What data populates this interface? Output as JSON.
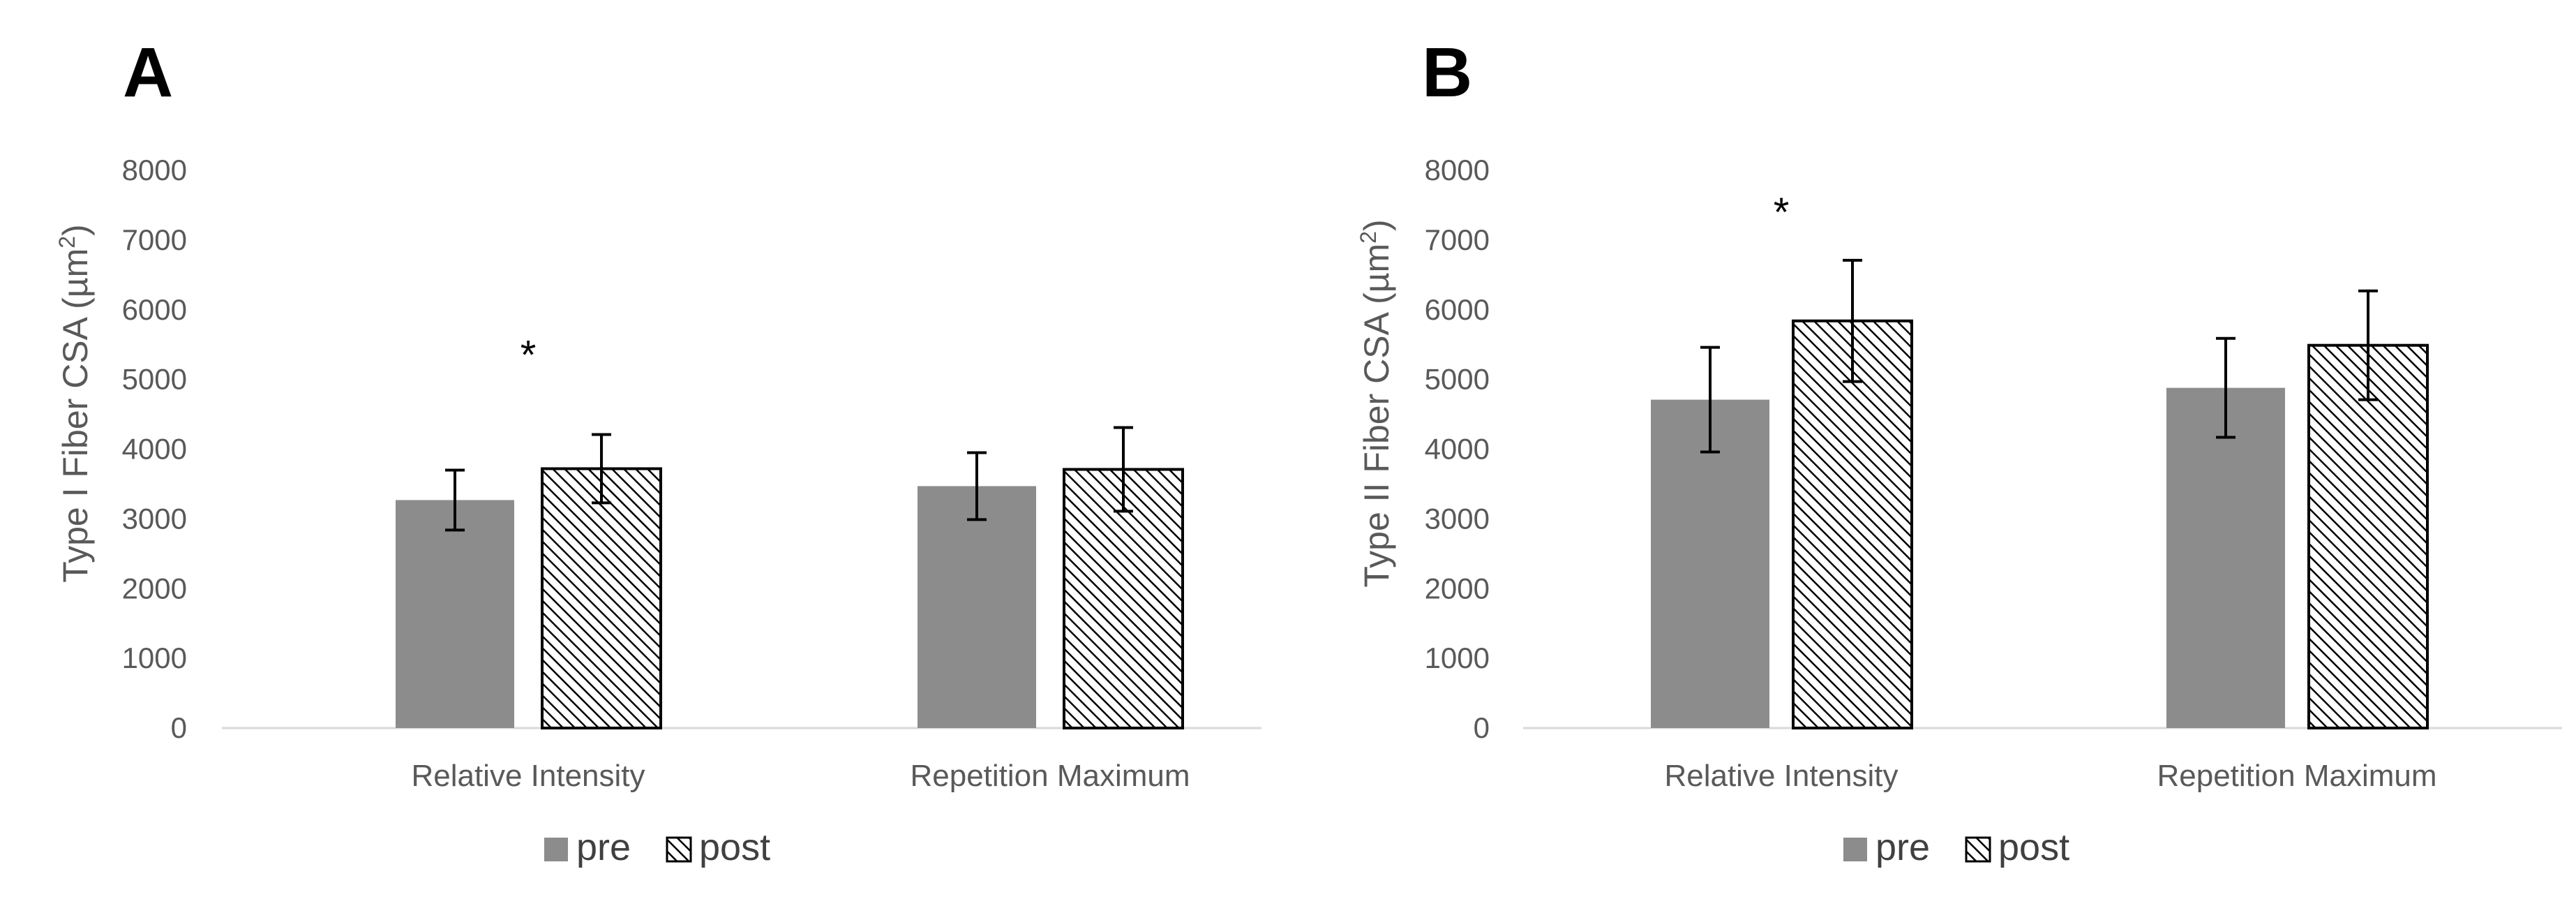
{
  "chart_data": [
    {
      "type": "bar",
      "panel_label": "A",
      "categories": [
        "Relative Intensity",
        "Repetition Maximum"
      ],
      "series": [
        {
          "name": "pre",
          "values": [
            3270,
            3470
          ],
          "errors": [
            430,
            480
          ]
        },
        {
          "name": "post",
          "values": [
            3720,
            3710
          ],
          "errors": [
            490,
            600
          ]
        }
      ],
      "ylabel_main": "Type I  Fiber CSA (µm",
      "ylabel_sup": "2",
      "ylabel_end": ")",
      "ylim": [
        0,
        8000
      ],
      "yticks": [
        "0",
        "1000",
        "2000",
        "3000",
        "4000",
        "5000",
        "6000",
        "7000",
        "8000"
      ],
      "annotations": [
        {
          "text": "*",
          "category": 0,
          "series": 0,
          "value": 5450
        }
      ],
      "legend": [
        "pre",
        "post"
      ]
    },
    {
      "type": "bar",
      "panel_label": "B",
      "categories": [
        "Relative Intensity",
        "Repetition Maximum"
      ],
      "series": [
        {
          "name": "pre",
          "values": [
            4710,
            4880
          ],
          "errors": [
            750,
            710
          ]
        },
        {
          "name": "post",
          "values": [
            5840,
            5490
          ],
          "errors": [
            870,
            780
          ]
        }
      ],
      "ylabel_main": "Type II Fiber CSA (µm",
      "ylabel_sup": "2",
      "ylabel_end": ")",
      "ylim": [
        0,
        8000
      ],
      "yticks": [
        "0",
        "1000",
        "2000",
        "3000",
        "4000",
        "5000",
        "6000",
        "7000",
        "8000"
      ],
      "annotations": [
        {
          "text": "*",
          "category": 0,
          "series": 0,
          "value": 7500
        }
      ],
      "legend": [
        "pre",
        "post"
      ]
    }
  ],
  "colors": {
    "pre_fill": "#8c8c8c",
    "post_fill": "#ffffff",
    "hatch": "#000000",
    "axis": "#d9d9d9",
    "text": "#595959"
  }
}
